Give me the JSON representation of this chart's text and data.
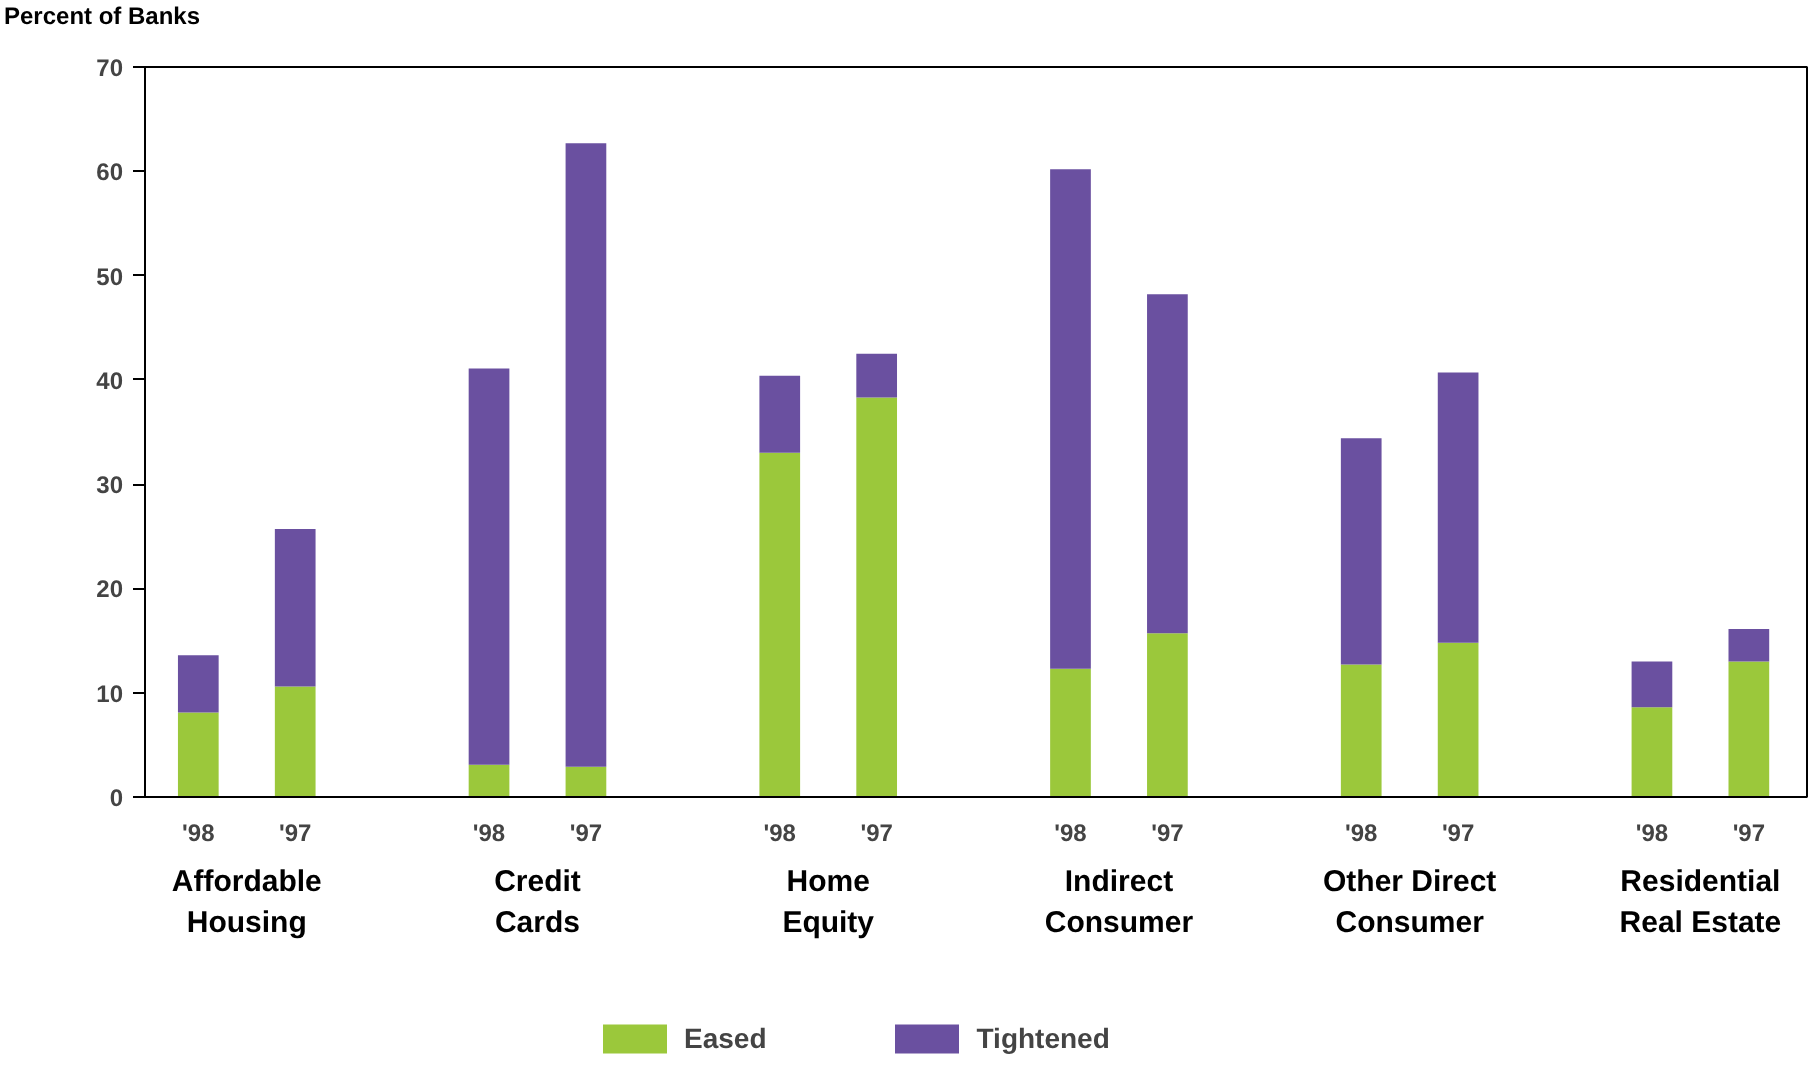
{
  "chart_data": {
    "type": "bar",
    "stacked": true,
    "ylabel": "Percent of Banks",
    "categories": [
      "'98",
      "'97",
      "'98",
      "'97",
      "'98",
      "'97",
      "'98",
      "'97",
      "'98",
      "'97",
      "'98",
      "'97"
    ],
    "annotations": [
      "Affordable Housing",
      "Credit Cards",
      "Home Equity",
      "Indirect Consumer",
      "Other Direct Consumer",
      "Residential Real Estate"
    ],
    "series": [
      {
        "name": "Eased",
        "color": "#9bc83b",
        "values": [
          8.1,
          10.6,
          3.1,
          2.9,
          33.0,
          38.3,
          12.3,
          15.7,
          12.7,
          14.8,
          8.6,
          13.0
        ]
      },
      {
        "name": "Tightened",
        "color": "#6a50a0",
        "values": [
          5.5,
          15.1,
          38.0,
          59.8,
          7.4,
          4.2,
          47.9,
          32.5,
          21.7,
          25.9,
          4.4,
          3.1
        ]
      }
    ],
    "ylim": [
      0,
      70
    ],
    "yticks": [
      0,
      10,
      20,
      30,
      40,
      50,
      60,
      70
    ],
    "grid": false,
    "legend": "bottom"
  }
}
